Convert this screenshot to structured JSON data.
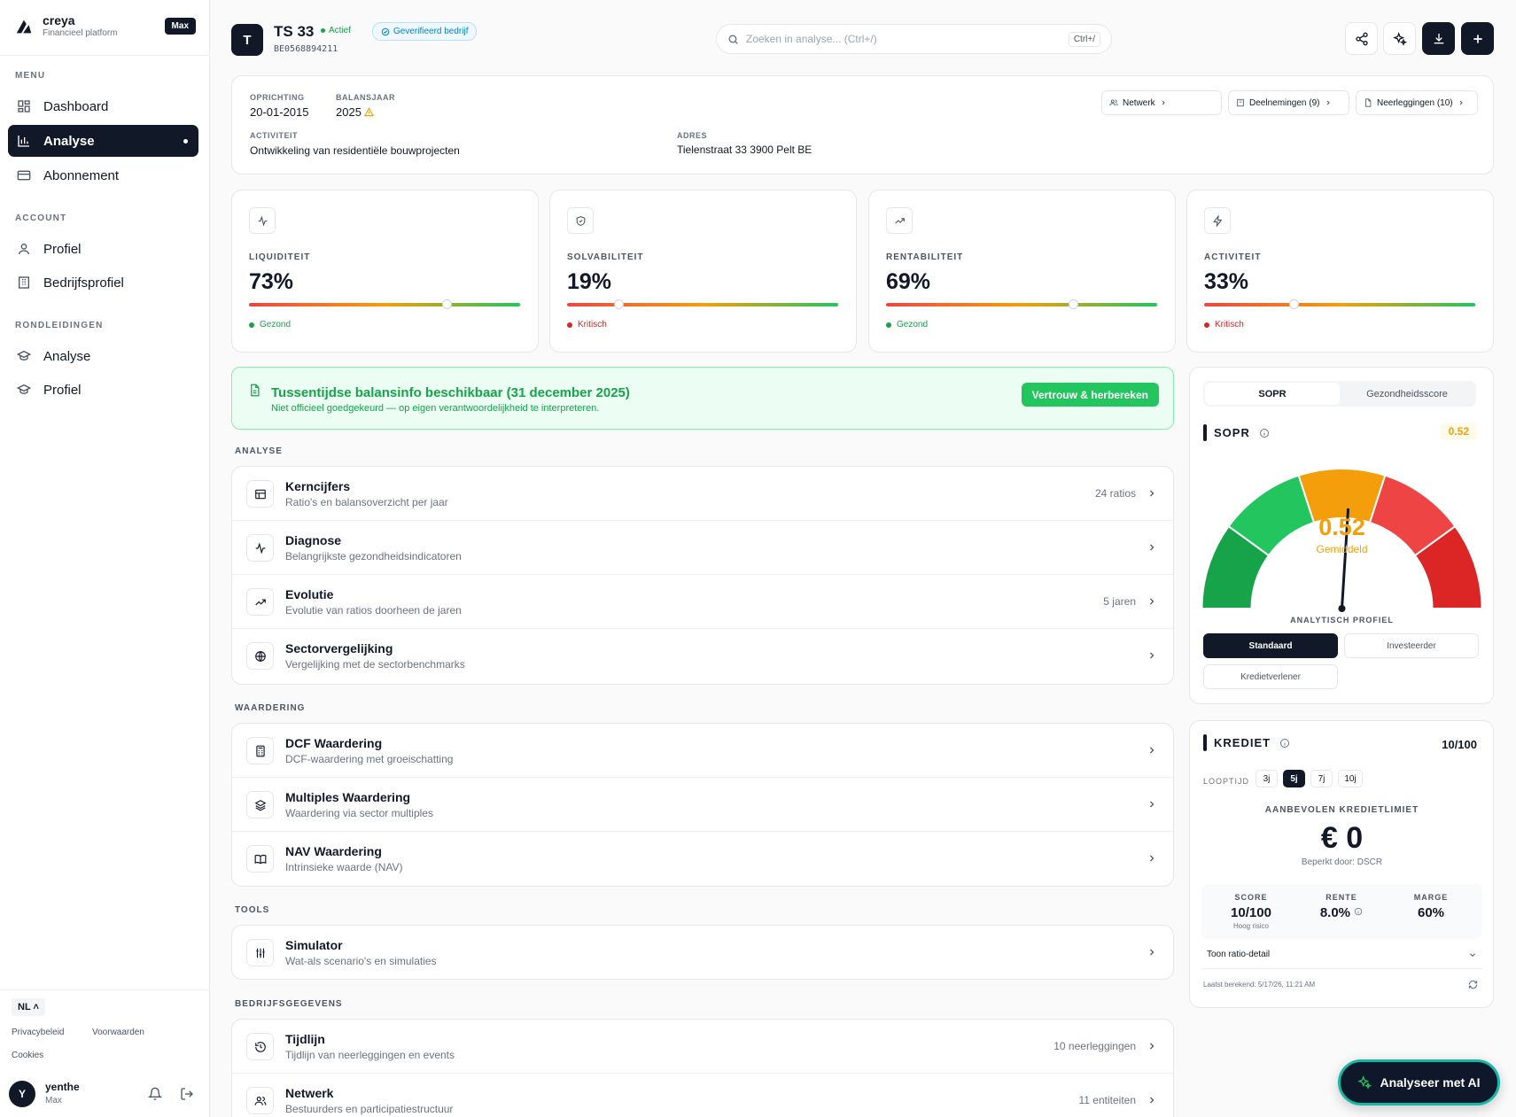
{
  "sidebar": {
    "brand_name": "creya",
    "brand_sub": "Financieel platform",
    "plan_badge": "Max",
    "menu_label": "MENU",
    "menu": [
      {
        "label": "Dashboard",
        "icon": "grid-icon"
      },
      {
        "label": "Analyse",
        "icon": "bar-chart-icon",
        "active": true
      },
      {
        "label": "Abonnement",
        "icon": "card-icon"
      }
    ],
    "account_label": "ACCOUNT",
    "account": [
      {
        "label": "Profiel",
        "icon": "user-icon"
      },
      {
        "label": "Bedrijfsprofiel",
        "icon": "building-icon"
      }
    ],
    "tours_label": "RONDLEIDINGEN",
    "tours": [
      {
        "label": "Analyse",
        "icon": "graduation-cap-icon"
      },
      {
        "label": "Profiel",
        "icon": "graduation-cap-icon"
      }
    ],
    "lang": "NL",
    "links": {
      "privacy": "Privacybeleid",
      "terms": "Voorwaarden",
      "cookies": "Cookies"
    },
    "user": {
      "initial": "Y",
      "name": "yenthe",
      "plan": "Max"
    }
  },
  "header": {
    "avatar": "T",
    "name": "TS 33",
    "status": "Actief",
    "verified": "Geverifieerd bedrijf",
    "company_id": "BE0568894211",
    "search_placeholder": "Zoeken in analyse... (Ctrl+/)",
    "search_kbd": "Ctrl+/"
  },
  "info": {
    "founding_label": "OPRICHTING",
    "founding": "20-01-2015",
    "year_label": "BALANSJAAR",
    "year": "2025",
    "activity_label": "ACTIVITEIT",
    "activity": "Ontwikkeling van residentiële bouwprojecten",
    "address_label": "ADRES",
    "address": "Tielenstraat 33 3900 Pelt BE",
    "buttons": {
      "network": "Netwerk",
      "holdings": "Deelnemingen (9)",
      "filings": "Neerleggingen (10)"
    }
  },
  "kpis": [
    {
      "label": "LIQUIDITEIT",
      "value": "73%",
      "position": 0.73,
      "status": "Gezond",
      "status_color": "#16a34a",
      "icon": "activity-icon"
    },
    {
      "label": "SOLVABILITEIT",
      "value": "19%",
      "position": 0.19,
      "status": "Kritisch",
      "status_color": "#dc2626",
      "icon": "shield-icon"
    },
    {
      "label": "RENTABILITEIT",
      "value": "69%",
      "position": 0.69,
      "status": "Gezond",
      "status_color": "#16a34a",
      "icon": "trending-up-icon"
    },
    {
      "label": "ACTIVITEIT",
      "value": "33%",
      "position": 0.33,
      "status": "Kritisch",
      "status_color": "#dc2626",
      "icon": "zap-icon"
    }
  ],
  "banner": {
    "title": "Tussentijdse balansinfo beschikbaar (31 december 2025)",
    "subtitle": "Niet officieel goedgekeurd — op eigen verantwoordelijkheid te interpreteren.",
    "button": "Vertrouw & herbereken"
  },
  "sections": [
    {
      "label": "ANALYSE",
      "items": [
        {
          "title": "Kerncijfers",
          "subtitle": "Ratio's en balansoverzicht per jaar",
          "meta": "24 ratios",
          "icon": "table-icon"
        },
        {
          "title": "Diagnose",
          "subtitle": "Belangrijkste gezondheidsindicatoren",
          "meta": "",
          "icon": "activity-icon"
        },
        {
          "title": "Evolutie",
          "subtitle": "Evolutie van ratios doorheen de jaren",
          "meta": "5 jaren",
          "icon": "trending-up-icon"
        },
        {
          "title": "Sectorvergelijking",
          "subtitle": "Vergelijking met de sectorbenchmarks",
          "meta": "",
          "icon": "globe-icon"
        }
      ]
    },
    {
      "label": "WAARDERING",
      "items": [
        {
          "title": "DCF Waardering",
          "subtitle": "DCF-waardering met groeischatting",
          "meta": "",
          "icon": "calculator-icon"
        },
        {
          "title": "Multiples Waardering",
          "subtitle": "Waardering via sector multiples",
          "meta": "",
          "icon": "layers-icon"
        },
        {
          "title": "NAV Waardering",
          "subtitle": "Intrinsieke waarde (NAV)",
          "meta": "",
          "icon": "book-icon"
        }
      ]
    },
    {
      "label": "TOOLS",
      "items": [
        {
          "title": "Simulator",
          "subtitle": "Wat-als scenario's en simulaties",
          "meta": "",
          "icon": "sliders-icon"
        }
      ]
    },
    {
      "label": "BEDRIJFSGEGEVENS",
      "items": [
        {
          "title": "Tijdlijn",
          "subtitle": "Tijdlijn van neerleggingen en events",
          "meta": "10 neerleggingen",
          "icon": "history-icon"
        },
        {
          "title": "Netwerk",
          "subtitle": "Bestuurders en participatiestructuur",
          "meta": "11 entiteiten",
          "icon": "users-icon"
        }
      ]
    }
  ],
  "sopr": {
    "tabs": [
      "SOPR",
      "Gezondheidsscore"
    ],
    "title": "SOPR",
    "badge": "0.52",
    "value": 0.52,
    "gauge_value": "0.52",
    "gauge_label": "Gemiddeld",
    "colors": [
      "#16a34a",
      "#22c55e",
      "#f59e0b",
      "#ef4444",
      "#dc2626"
    ],
    "profile_label": "ANALYTISCH PROFIEL",
    "profiles": [
      "Standaard",
      "Investeerder",
      "Kredietverlener"
    ]
  },
  "krediet": {
    "title": "KREDIET",
    "score_badge": "10/100",
    "term_label": "LOOPTIJD",
    "terms": [
      "3j",
      "5j",
      "7j",
      "10j"
    ],
    "limit_label": "AANBEVOLEN KREDIETLIMIET",
    "limit": "€ 0",
    "limit_note": "Beperkt door: DSCR",
    "stats": {
      "score_label": "SCORE",
      "score": "10/100",
      "score_sub": "Hoog risico",
      "rate_label": "RENTE",
      "rate": "8.0%",
      "margin_label": "MARGE",
      "margin": "60%"
    },
    "ratio_toggle": "Toon ratio-detail",
    "last_calc": "Laatst berekend: 5/17/26, 11:21 AM"
  },
  "ai_button": "Analyseer met AI"
}
